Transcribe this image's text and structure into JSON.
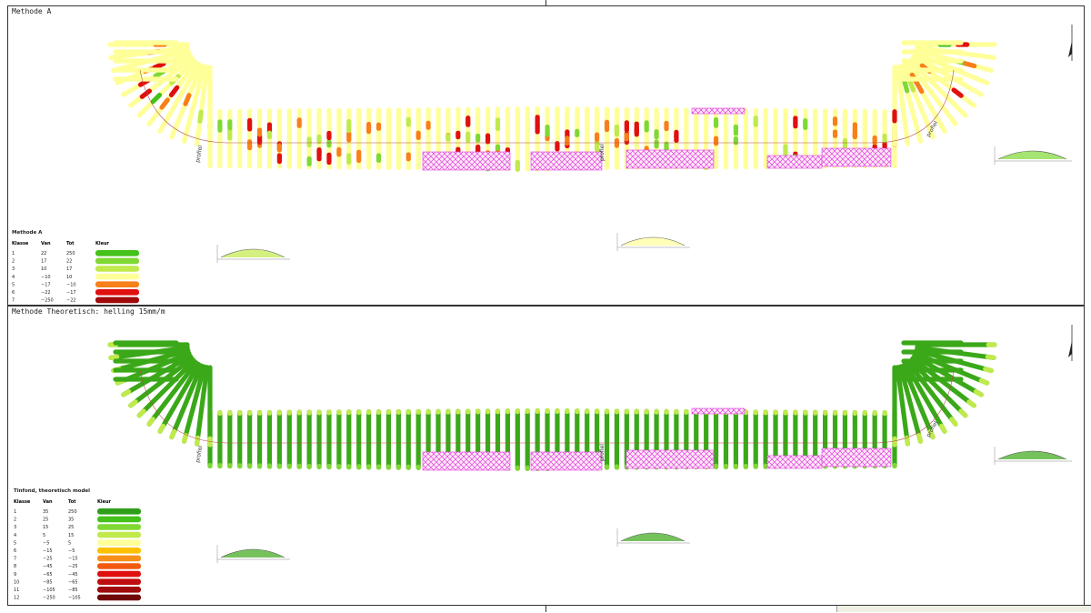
{
  "panels": [
    {
      "id": "a",
      "title": "Methode A",
      "legend": {
        "title": "Methode A",
        "headers": [
          "Klasse",
          "Van",
          "Tot",
          "Kleur"
        ],
        "rows": [
          {
            "klasse": "1",
            "van": "22",
            "tot": "250",
            "color": "#44c21a"
          },
          {
            "klasse": "2",
            "van": "17",
            "tot": "22",
            "color": "#7fd834"
          },
          {
            "klasse": "3",
            "van": "10",
            "tot": "17",
            "color": "#c0ea4c"
          },
          {
            "klasse": "4",
            "van": "−10",
            "tot": "10",
            "color": "#ffff99"
          },
          {
            "klasse": "5",
            "van": "−17",
            "tot": "−10",
            "color": "#f7801a"
          },
          {
            "klasse": "6",
            "van": "−22",
            "tot": "−17",
            "color": "#e01010"
          },
          {
            "klasse": "7",
            "van": "−250",
            "tot": "−22",
            "color": "#a00a0a"
          }
        ]
      },
      "profile_labels": [
        "profiel",
        "profiel",
        "profiel"
      ]
    },
    {
      "id": "b",
      "title": "Methode Theoretisch: helling 15mm/m",
      "legend": {
        "title": "Tinfond, theoretisch model",
        "headers": [
          "Klasse",
          "Van",
          "Tot",
          "Kleur"
        ],
        "rows": [
          {
            "klasse": "1",
            "van": "35",
            "tot": "250",
            "color": "#2f9e1a"
          },
          {
            "klasse": "2",
            "van": "25",
            "tot": "35",
            "color": "#44c21a"
          },
          {
            "klasse": "3",
            "van": "15",
            "tot": "25",
            "color": "#7fd834"
          },
          {
            "klasse": "4",
            "van": "5",
            "tot": "15",
            "color": "#c0ea4c"
          },
          {
            "klasse": "5",
            "van": "−5",
            "tot": "5",
            "color": "#ffff99"
          },
          {
            "klasse": "6",
            "van": "−15",
            "tot": "−5",
            "color": "#ffc000"
          },
          {
            "klasse": "7",
            "van": "−25",
            "tot": "−15",
            "color": "#f7901a"
          },
          {
            "klasse": "8",
            "van": "−45",
            "tot": "−25",
            "color": "#f25a10"
          },
          {
            "klasse": "9",
            "van": "−65",
            "tot": "−45",
            "color": "#e01010"
          },
          {
            "klasse": "10",
            "van": "−85",
            "tot": "−65",
            "color": "#c00d0d"
          },
          {
            "klasse": "11",
            "van": "−105",
            "tot": "−85",
            "color": "#a00a0a"
          },
          {
            "klasse": "12",
            "van": "−250",
            "tot": "−105",
            "color": "#700606"
          }
        ]
      },
      "profile_labels": [
        "profiel",
        "profiel",
        "profiel"
      ]
    }
  ],
  "symbols": {
    "north_arrow": "north-arrow-icon",
    "hatch_color": "#e040e0"
  }
}
